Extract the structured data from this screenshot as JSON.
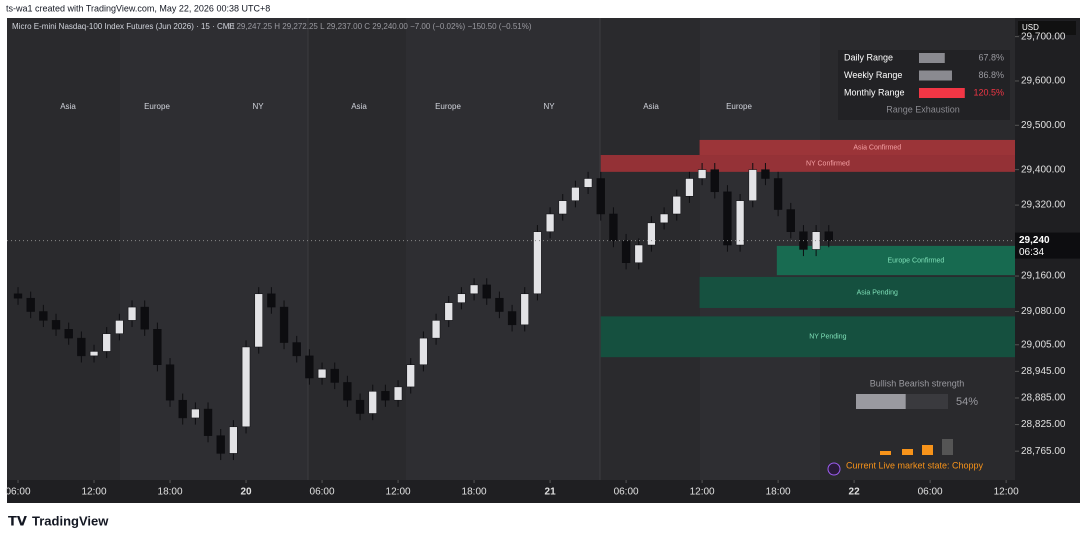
{
  "header": {
    "credit": "ts-wa1 created with TradingView.com, May 22, 2026 00:38 UTC+8"
  },
  "footer": {
    "logo": "TradingView"
  },
  "chart_data": {
    "type": "candlestick",
    "symbol": "Micro E-mini Nasdaq-100 Index Futures (Jun 2026) · 15 · CME",
    "ohlc_text": "O 29,247.25  H 29,272.25  L 29,237.00  C 29,240.00  −7.00 (−0.02%)  −150.50 (−0.51%)",
    "currency": "USD",
    "current_price": {
      "value": 29240,
      "label": "29,240",
      "countdown": "06:34"
    },
    "x": [
      0,
      1,
      2,
      3,
      4,
      5,
      6,
      7,
      8,
      9,
      10,
      11,
      12,
      13,
      14,
      15,
      16,
      17,
      18,
      19,
      20,
      21,
      22,
      23,
      24,
      25,
      26,
      27,
      28,
      29,
      30,
      31,
      32,
      33,
      34,
      35,
      36,
      37,
      38,
      39,
      40,
      41,
      42,
      43,
      44,
      45,
      46,
      47,
      48,
      49,
      50,
      51,
      52,
      53,
      54,
      55,
      56,
      57,
      58,
      59,
      60,
      61,
      62,
      63,
      64
    ],
    "open": [
      29120,
      29110,
      29080,
      29060,
      29040,
      29020,
      28980,
      28990,
      29030,
      29060,
      29090,
      29040,
      28960,
      28880,
      28840,
      28860,
      28800,
      28760,
      28820,
      29000,
      29120,
      29090,
      29010,
      28980,
      28930,
      28950,
      28920,
      28880,
      28850,
      28900,
      28880,
      28910,
      28960,
      29020,
      29060,
      29100,
      29120,
      29140,
      29110,
      29080,
      29050,
      29120,
      29260,
      29300,
      29330,
      29360,
      29380,
      29300,
      29240,
      29190,
      29230,
      29280,
      29300,
      29340,
      29380,
      29400,
      29350,
      29230,
      29330,
      29400,
      29380,
      29310,
      29260,
      29220,
      29260
    ],
    "high": [
      29135,
      29125,
      29095,
      29075,
      29055,
      29035,
      29005,
      29045,
      29075,
      29105,
      29105,
      29055,
      28975,
      28895,
      28875,
      28875,
      28815,
      28835,
      29015,
      29135,
      29135,
      29105,
      29025,
      28995,
      28965,
      28965,
      28935,
      28895,
      28915,
      28915,
      28925,
      28975,
      29035,
      29075,
      29115,
      29135,
      29155,
      29155,
      29125,
      29095,
      29135,
      29275,
      29315,
      29345,
      29375,
      29395,
      29395,
      29315,
      29255,
      29245,
      29295,
      29315,
      29355,
      29395,
      29415,
      29415,
      29365,
      29345,
      29415,
      29415,
      29395,
      29325,
      29275,
      29275,
      29275
    ],
    "low": [
      29095,
      29065,
      29045,
      29025,
      29005,
      28965,
      28965,
      28975,
      29015,
      29045,
      29025,
      28945,
      28865,
      28825,
      28825,
      28785,
      28745,
      28745,
      28805,
      28985,
      29075,
      28995,
      28965,
      28915,
      28915,
      28905,
      28865,
      28835,
      28835,
      28865,
      28865,
      28895,
      28945,
      29005,
      29045,
      29085,
      29105,
      29095,
      29065,
      29035,
      29035,
      29105,
      29245,
      29285,
      29315,
      29345,
      29285,
      29225,
      29175,
      29175,
      29215,
      29265,
      29285,
      29325,
      29365,
      29335,
      29215,
      29215,
      29315,
      29365,
      29295,
      29245,
      29205,
      29205,
      29225
    ],
    "close": [
      29110,
      29080,
      29060,
      29040,
      29020,
      28980,
      28990,
      29030,
      29060,
      29090,
      29040,
      28960,
      28880,
      28840,
      28860,
      28800,
      28760,
      28820,
      29000,
      29120,
      29090,
      29010,
      28980,
      28930,
      28950,
      28920,
      28880,
      28850,
      28900,
      28880,
      28910,
      28960,
      29020,
      29060,
      29100,
      29120,
      29140,
      29110,
      29080,
      29050,
      29120,
      29260,
      29300,
      29330,
      29360,
      29380,
      29300,
      29240,
      29190,
      29230,
      29280,
      29300,
      29340,
      29380,
      29400,
      29350,
      29230,
      29330,
      29400,
      29380,
      29310,
      29260,
      29220,
      29260,
      29240
    ],
    "up_color": "#e3e3e6",
    "down_color": "#0d0d10",
    "xlim": [
      -0.87,
      78.7
    ],
    "xticks": [
      {
        "value": 0,
        "label": "06:00"
      },
      {
        "value": 6,
        "label": "12:00"
      },
      {
        "value": 12,
        "label": "18:00"
      },
      {
        "value": 18,
        "label": "20"
      },
      {
        "value": 24,
        "label": "06:00"
      },
      {
        "value": 30,
        "label": "12:00"
      },
      {
        "value": 36,
        "label": "18:00"
      },
      {
        "value": 42,
        "label": "21"
      },
      {
        "value": 48,
        "label": "06:00"
      },
      {
        "value": 54,
        "label": "12:00"
      },
      {
        "value": 60,
        "label": "18:00"
      },
      {
        "value": 66,
        "label": "22"
      },
      {
        "value": 72,
        "label": "06:00"
      },
      {
        "value": 78,
        "label": "12:00"
      }
    ],
    "ylim": [
      28700,
      29742
    ],
    "yticks": [
      {
        "value": 29700,
        "label": "29,700.00"
      },
      {
        "value": 29600,
        "label": "29,600.00"
      },
      {
        "value": 29500,
        "label": "29,500.00"
      },
      {
        "value": 29400,
        "label": "29,400.00"
      },
      {
        "value": 29320,
        "label": "29,320.00"
      },
      {
        "value": 29160,
        "label": "29,160.00"
      },
      {
        "value": 29080,
        "label": "29,080.00"
      },
      {
        "value": 29005,
        "label": "29,005.00"
      },
      {
        "value": 28945,
        "label": "28,945.00"
      },
      {
        "value": 28885,
        "label": "28,885.00"
      },
      {
        "value": 28825,
        "label": "28,825.00"
      },
      {
        "value": 28765,
        "label": "28,765.00"
      }
    ],
    "sessions": [
      "Asia",
      "Europe",
      "NY",
      "Asia",
      "Europe",
      "NY",
      "Asia",
      "Europe"
    ],
    "zones": [
      {
        "label": "Asia Confirmed",
        "top": 29467,
        "bottom": 29433,
        "start": 53.8,
        "color": "#c2383c"
      },
      {
        "label": "NY Confirmed",
        "top": 29433,
        "bottom": 29395,
        "start": 46,
        "color": "#b8343a"
      },
      {
        "label": "Europe Confirmed",
        "top": 29228,
        "bottom": 29162,
        "start": 59.9,
        "color": "#12805c"
      },
      {
        "label": "Asia Pending",
        "top": 29158,
        "bottom": 29088,
        "start": 53.8,
        "color": "#0f5d45"
      },
      {
        "label": "NY Pending",
        "top": 29069,
        "bottom": 28977,
        "start": 46,
        "color": "#0f5d45"
      }
    ],
    "ranges": [
      {
        "name": "Daily Range",
        "value": 67.8,
        "label": "67.8%",
        "color": "#8a8a90"
      },
      {
        "name": "Weekly Range",
        "value": 86.8,
        "label": "86.8%",
        "color": "#8a8a90"
      },
      {
        "name": "Monthly Range",
        "value": 120.5,
        "label": "120.5%",
        "color": "#f23645"
      }
    ],
    "range_caption": "Range Exhaustion",
    "strength": {
      "title": "Bullish Bearish strength",
      "value": 54,
      "label": "54%"
    },
    "market_state": "Current Live market state: Choppy"
  }
}
